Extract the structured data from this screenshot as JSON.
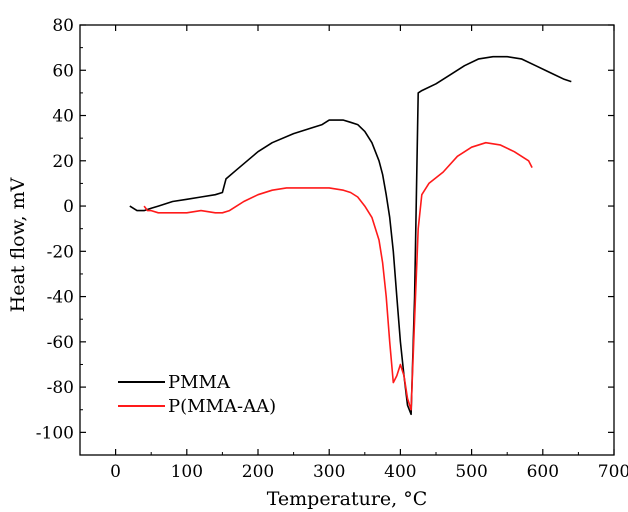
{
  "chart_data": {
    "type": "line",
    "xlabel": "Temperature, °C",
    "ylabel": "Heat flow, mV",
    "xlim": [
      -50,
      700
    ],
    "ylim": [
      -110,
      80
    ],
    "xticks": [
      0,
      100,
      200,
      300,
      400,
      500,
      600,
      700
    ],
    "yticks": [
      80,
      60,
      40,
      20,
      0,
      -20,
      -40,
      -60,
      -80,
      -100
    ],
    "grid": false,
    "legend_position": "bottom-left",
    "series": [
      {
        "name": "PMMA",
        "color": "#000000",
        "x": [
          20,
          30,
          40,
          50,
          60,
          80,
          100,
          120,
          140,
          150,
          155,
          170,
          200,
          220,
          250,
          270,
          290,
          300,
          310,
          320,
          330,
          340,
          350,
          360,
          370,
          375,
          380,
          385,
          390,
          395,
          400,
          405,
          410,
          415,
          420,
          425,
          430,
          450,
          470,
          490,
          510,
          530,
          550,
          570,
          590,
          610,
          630,
          640
        ],
        "y": [
          0,
          -2,
          -2,
          -1,
          0,
          2,
          3,
          4,
          5,
          6,
          12,
          16,
          24,
          28,
          32,
          34,
          36,
          38,
          38,
          38,
          37,
          36,
          33,
          28,
          20,
          14,
          5,
          -5,
          -20,
          -40,
          -60,
          -75,
          -88,
          -92,
          -40,
          50,
          51,
          54,
          58,
          62,
          65,
          66,
          66,
          65,
          62,
          59,
          56,
          55
        ],
        "x_note": "Curve ends near 645 C",
        "dip_min_x": 413
      },
      {
        "name": "P(MMA-AA)",
        "color": "#ff1a1a",
        "x": [
          40,
          45,
          50,
          60,
          80,
          100,
          120,
          140,
          150,
          160,
          170,
          180,
          200,
          220,
          240,
          260,
          280,
          300,
          320,
          330,
          340,
          350,
          360,
          370,
          375,
          380,
          385,
          390,
          395,
          400,
          405,
          410,
          415,
          420,
          425,
          430,
          440,
          460,
          480,
          500,
          520,
          540,
          560,
          580,
          585
        ],
        "y": [
          0,
          -2,
          -2,
          -3,
          -3,
          -3,
          -2,
          -3,
          -3,
          -2,
          0,
          2,
          5,
          7,
          8,
          8,
          8,
          8,
          7,
          6,
          4,
          0,
          -5,
          -15,
          -25,
          -40,
          -60,
          -78,
          -75,
          -70,
          -75,
          -85,
          -90,
          -50,
          -10,
          5,
          10,
          15,
          22,
          26,
          28,
          27,
          24,
          20,
          17
        ]
      }
    ]
  },
  "colors": {
    "axis": "#000000"
  }
}
